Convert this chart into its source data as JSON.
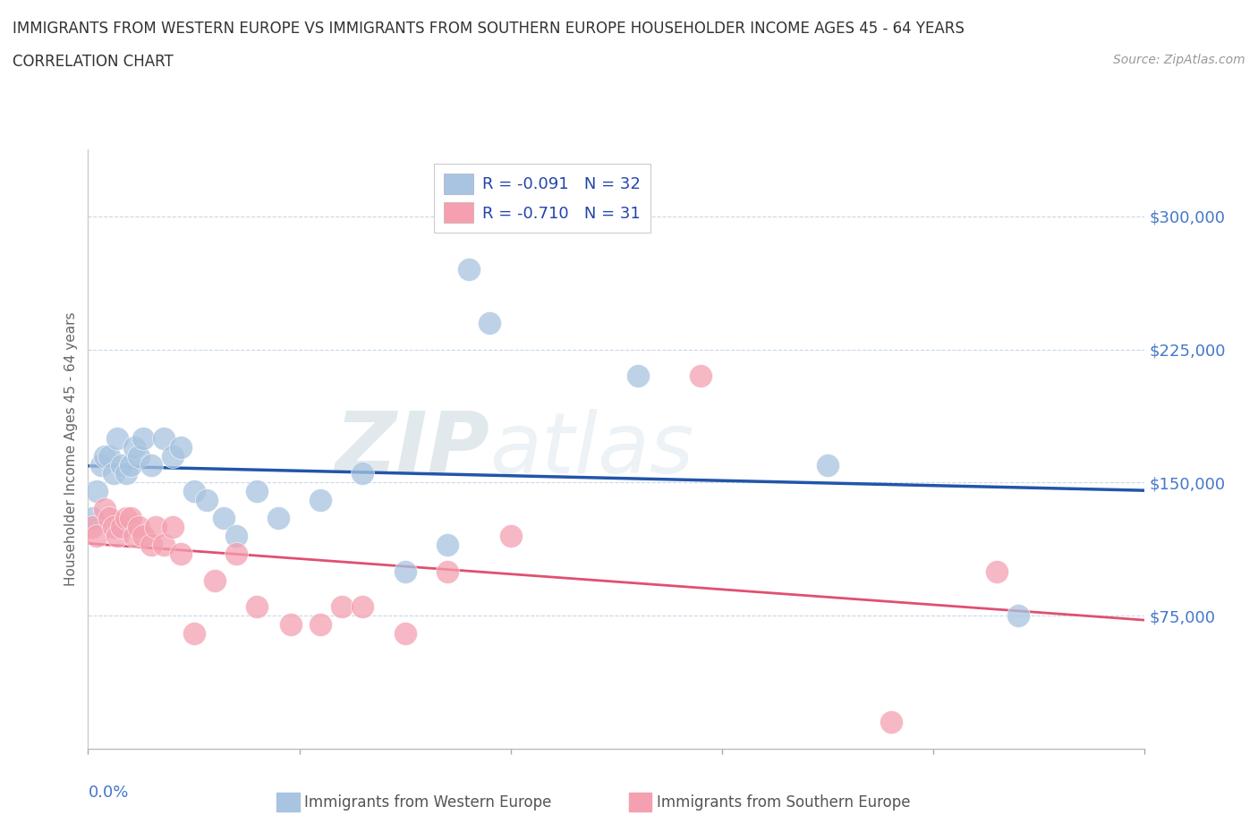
{
  "title_line1": "IMMIGRANTS FROM WESTERN EUROPE VS IMMIGRANTS FROM SOUTHERN EUROPE HOUSEHOLDER INCOME AGES 45 - 64 YEARS",
  "title_line2": "CORRELATION CHART",
  "source": "Source: ZipAtlas.com",
  "ylabel": "Householder Income Ages 45 - 64 years",
  "legend_label1": "Immigrants from Western Europe",
  "legend_label2": "Immigrants from Southern Europe",
  "r1": -0.091,
  "n1": 32,
  "r2": -0.71,
  "n2": 31,
  "blue_color": "#A8C4E0",
  "pink_color": "#F4A0B0",
  "blue_line_color": "#2255AA",
  "pink_line_color": "#E05070",
  "watermark_zip": "ZIP",
  "watermark_atlas": "atlas",
  "xlim": [
    0.0,
    0.25
  ],
  "ylim": [
    0,
    337500
  ],
  "yticks": [
    0,
    75000,
    150000,
    225000,
    300000
  ],
  "ytick_labels": [
    "",
    "$75,000",
    "$150,000",
    "$225,000",
    "$300,000"
  ],
  "blue_x": [
    0.001,
    0.002,
    0.003,
    0.004,
    0.005,
    0.006,
    0.007,
    0.008,
    0.009,
    0.01,
    0.011,
    0.012,
    0.013,
    0.015,
    0.018,
    0.02,
    0.022,
    0.025,
    0.028,
    0.032,
    0.035,
    0.04,
    0.045,
    0.055,
    0.065,
    0.075,
    0.085,
    0.09,
    0.095,
    0.13,
    0.175,
    0.22
  ],
  "blue_y": [
    130000,
    145000,
    160000,
    165000,
    165000,
    155000,
    175000,
    160000,
    155000,
    160000,
    170000,
    165000,
    175000,
    160000,
    175000,
    165000,
    170000,
    145000,
    140000,
    130000,
    120000,
    145000,
    130000,
    140000,
    155000,
    100000,
    115000,
    270000,
    240000,
    210000,
    160000,
    75000
  ],
  "pink_x": [
    0.001,
    0.002,
    0.004,
    0.005,
    0.006,
    0.007,
    0.008,
    0.009,
    0.01,
    0.011,
    0.012,
    0.013,
    0.015,
    0.016,
    0.018,
    0.02,
    0.022,
    0.025,
    0.03,
    0.035,
    0.04,
    0.048,
    0.055,
    0.06,
    0.065,
    0.075,
    0.085,
    0.1,
    0.145,
    0.19,
    0.215
  ],
  "pink_y": [
    125000,
    120000,
    135000,
    130000,
    125000,
    120000,
    125000,
    130000,
    130000,
    120000,
    125000,
    120000,
    115000,
    125000,
    115000,
    125000,
    110000,
    65000,
    95000,
    110000,
    80000,
    70000,
    70000,
    80000,
    80000,
    65000,
    100000,
    120000,
    210000,
    15000,
    100000
  ]
}
